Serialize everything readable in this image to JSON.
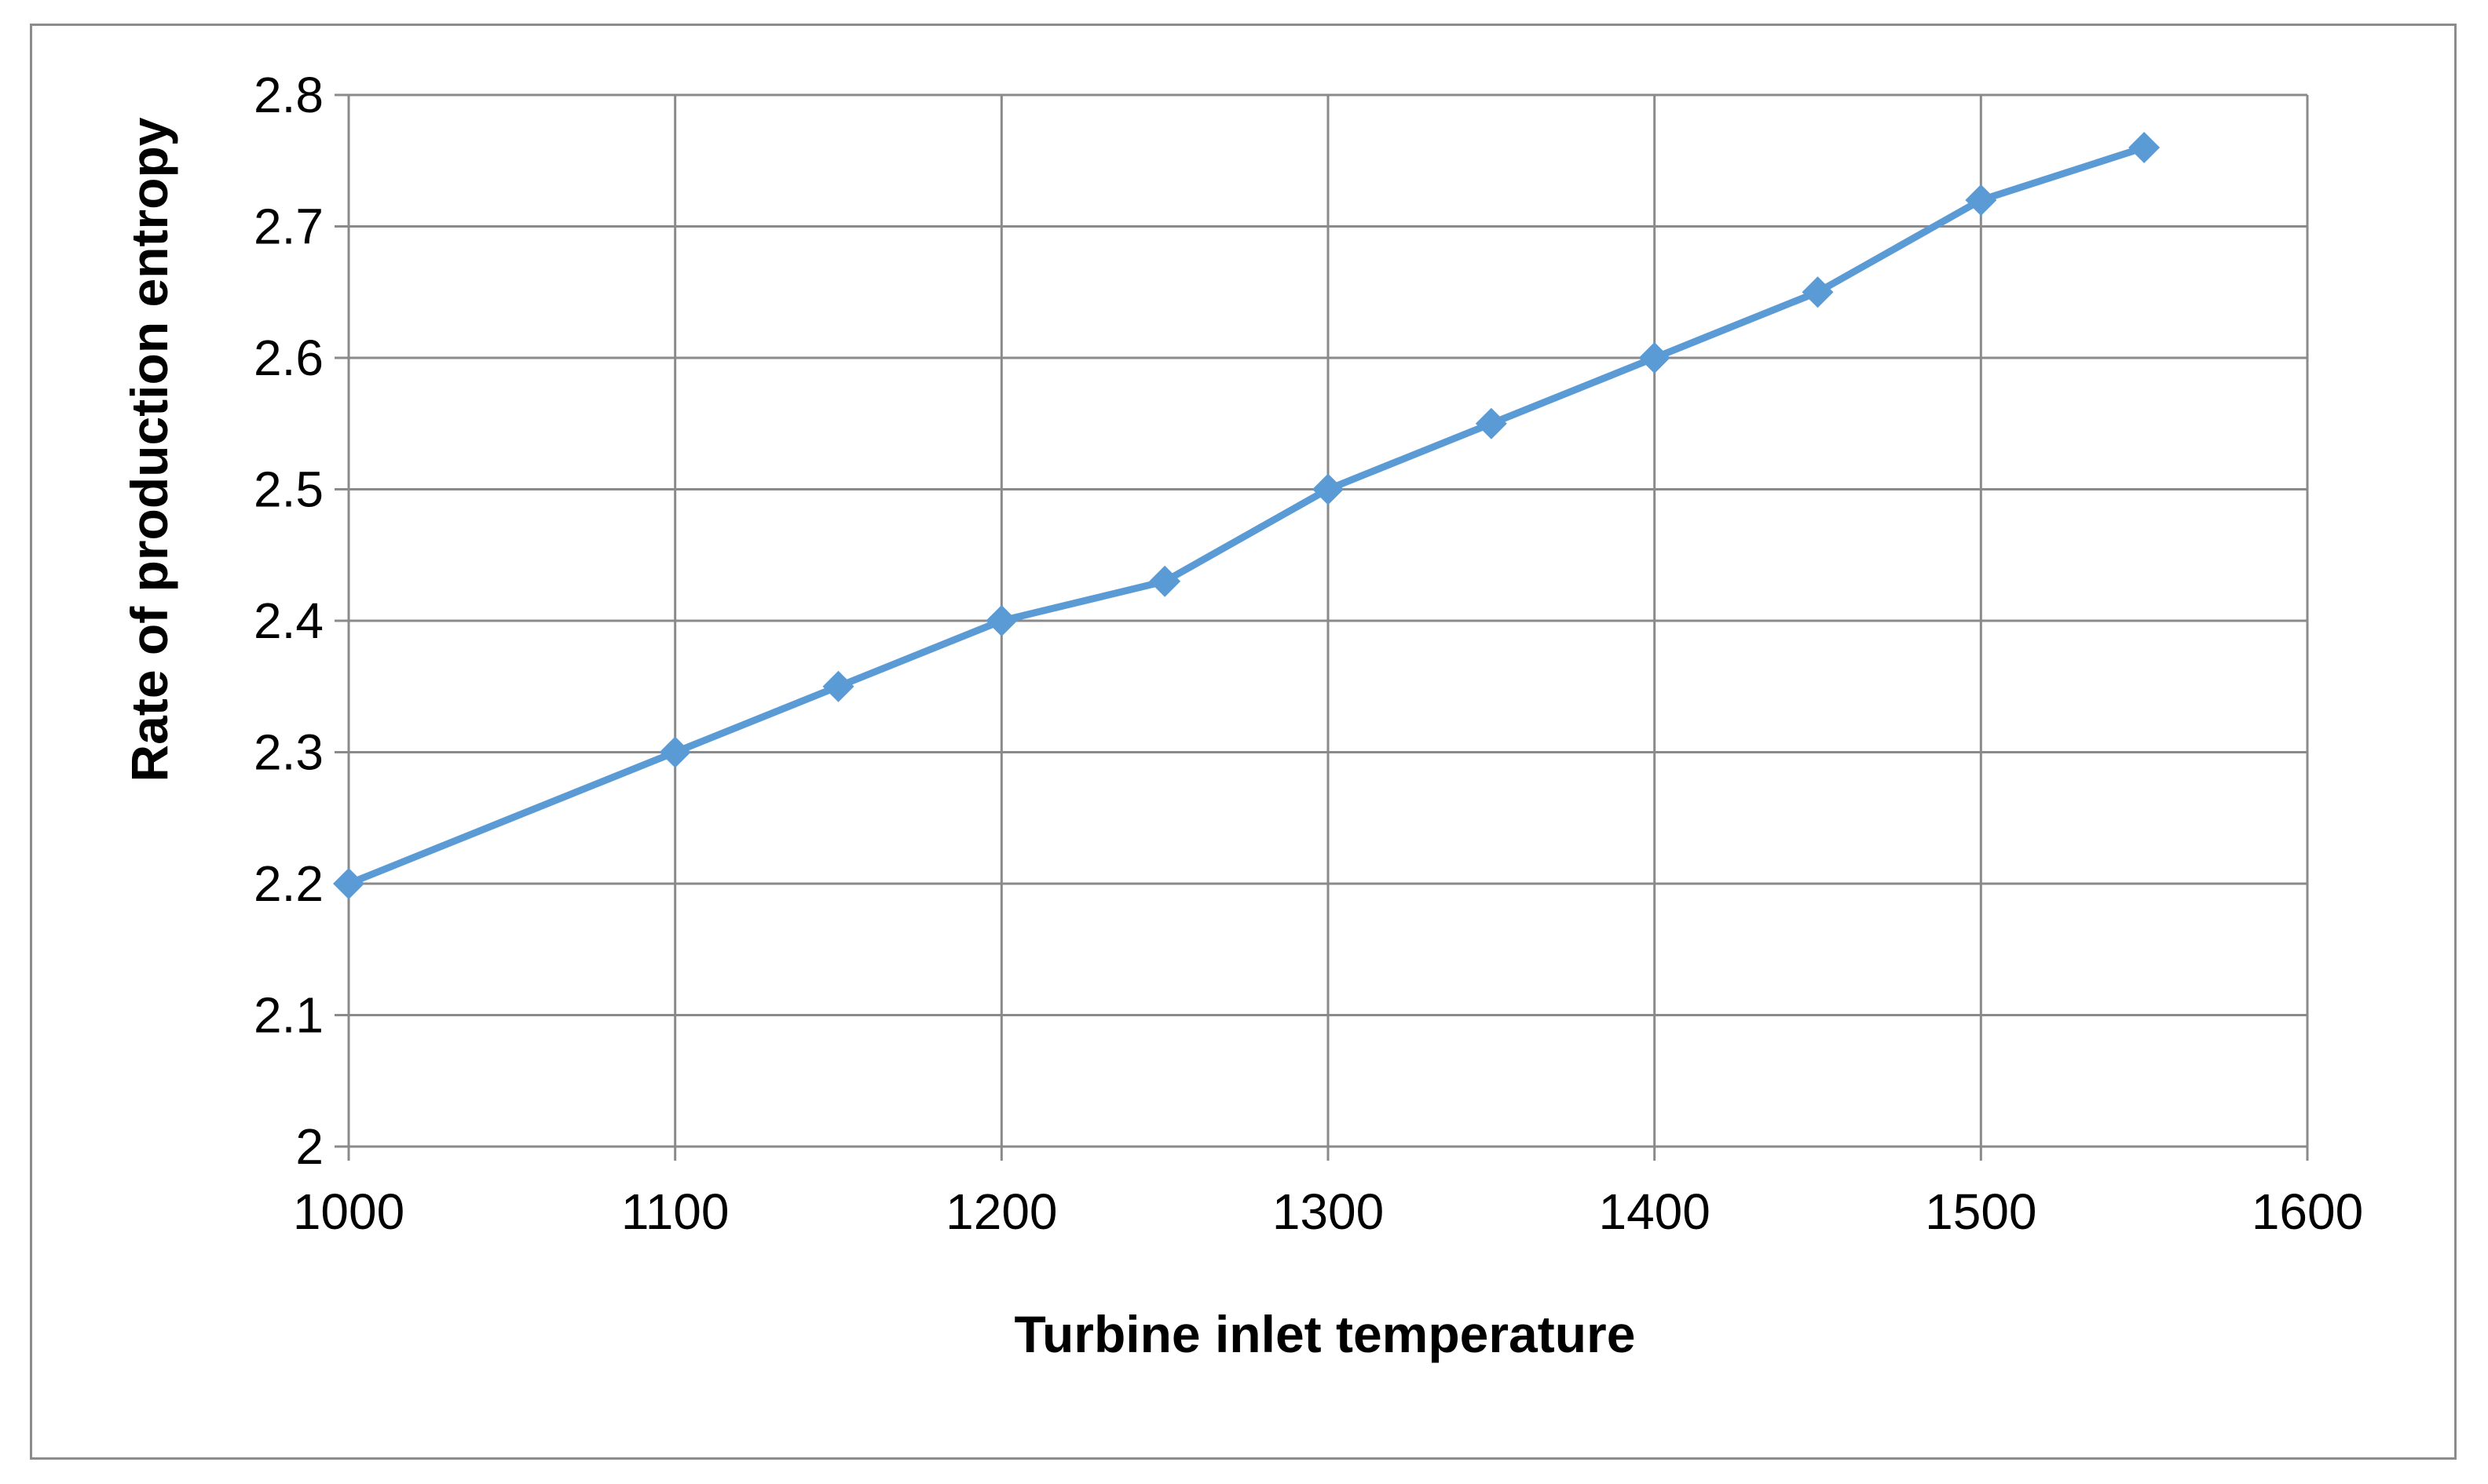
{
  "chart_data": {
    "type": "line",
    "title": "",
    "xlabel": "Turbine inlet temperature",
    "ylabel": "Rate of production entropy",
    "xlim": [
      1000,
      1600
    ],
    "ylim": [
      2,
      2.8
    ],
    "x_ticks": [
      1000,
      1100,
      1200,
      1300,
      1400,
      1500,
      1600
    ],
    "y_ticks": [
      2,
      2.1,
      2.2,
      2.3,
      2.4,
      2.5,
      2.6,
      2.7,
      2.8
    ],
    "x_tick_labels": [
      "1000",
      "1100",
      "1200",
      "1300",
      "1400",
      "1500",
      "1600"
    ],
    "y_tick_labels": [
      "2",
      "2.1",
      "2.2",
      "2.3",
      "2.4",
      "2.5",
      "2.6",
      "2.7",
      "2.8"
    ],
    "grid": true,
    "legend": "none",
    "marker": "diamond",
    "series_color": "#5b9bd5",
    "series": [
      {
        "x": [
          1000,
          1100,
          1150,
          1200,
          1250,
          1300,
          1350,
          1400,
          1450,
          1500,
          1550
        ],
        "y": [
          2.2,
          2.3,
          2.35,
          2.4,
          2.43,
          2.5,
          2.55,
          2.6,
          2.65,
          2.72,
          2.76
        ]
      }
    ]
  }
}
